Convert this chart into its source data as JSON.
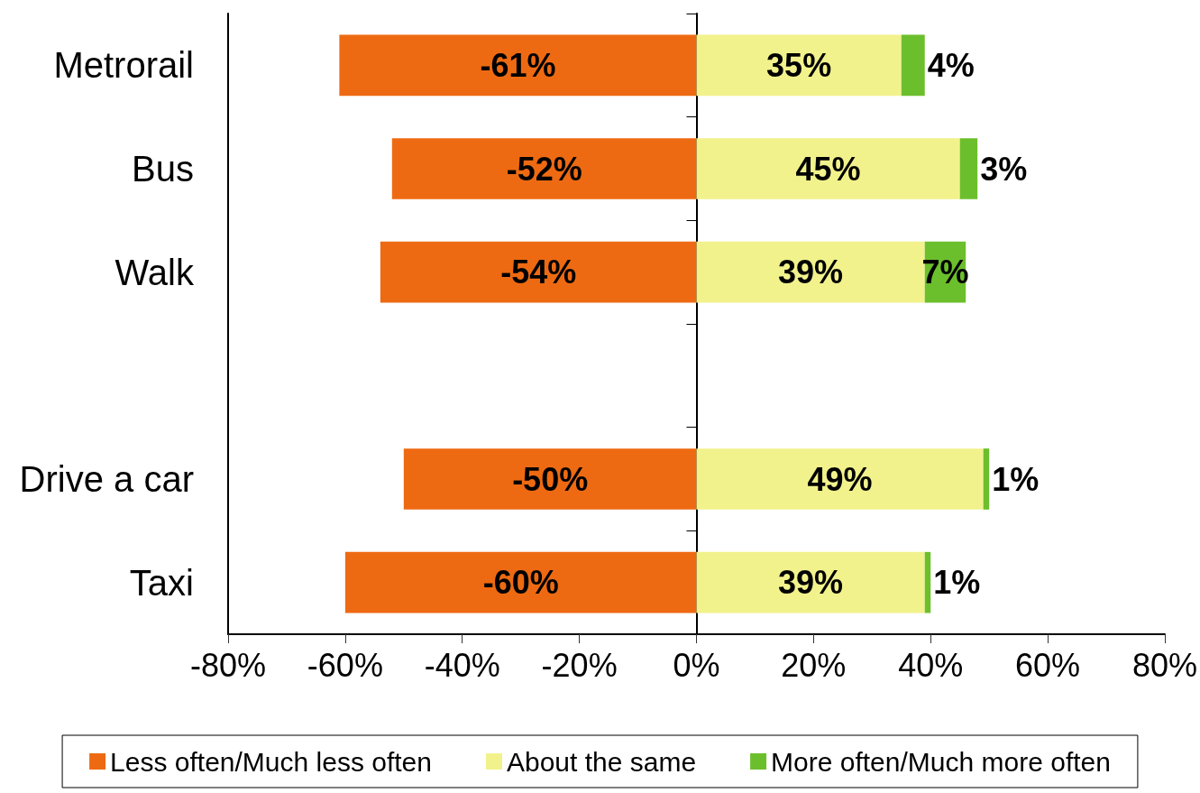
{
  "chart_data": {
    "type": "bar",
    "orientation": "horizontal",
    "stacked": true,
    "categories": [
      "Metrorail",
      "Bus",
      "Walk",
      null,
      "Drive a car",
      "Taxi"
    ],
    "series": [
      {
        "name": "Less often/Much less often",
        "color": "#ee6a12",
        "values": [
          -61,
          -52,
          -54,
          null,
          -50,
          -60
        ],
        "value_labels": [
          "-61%",
          "-52%",
          "-54%",
          null,
          "-50%",
          "-60%"
        ]
      },
      {
        "name": "About the same",
        "color": "#f2f28c",
        "values": [
          35,
          45,
          39,
          null,
          49,
          39
        ],
        "value_labels": [
          "35%",
          "45%",
          "39%",
          null,
          "49%",
          "39%"
        ]
      },
      {
        "name": "More often/Much more often",
        "color": "#6cbf2c",
        "values": [
          4,
          3,
          7,
          null,
          1,
          1
        ],
        "value_labels": [
          "4%",
          "3%",
          "7%",
          null,
          "1%",
          "1%"
        ]
      }
    ],
    "xlim": [
      -80,
      80
    ],
    "xticks": [
      {
        "value": -80,
        "label": "-80%"
      },
      {
        "value": -60,
        "label": "-60%"
      },
      {
        "value": -40,
        "label": "-40%"
      },
      {
        "value": -20,
        "label": "-20%"
      },
      {
        "value": 0,
        "label": "0%"
      },
      {
        "value": 20,
        "label": "20%"
      },
      {
        "value": 40,
        "label": "40%"
      },
      {
        "value": 60,
        "label": "60%"
      },
      {
        "value": 80,
        "label": "80%"
      }
    ],
    "legend": "bottom"
  }
}
